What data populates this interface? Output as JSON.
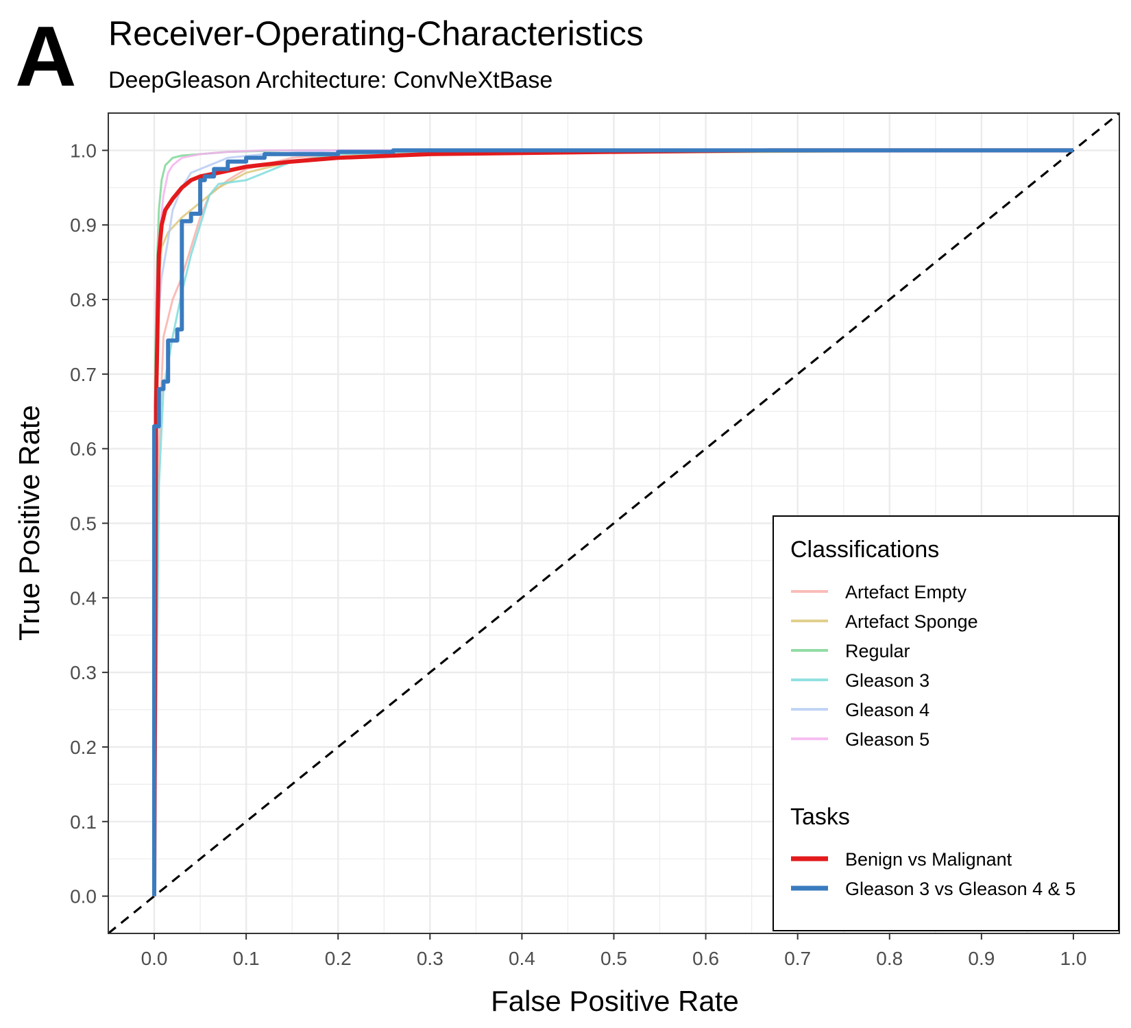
{
  "chart_data": {
    "type": "line",
    "panel_label": "A",
    "title": "Receiver-Operating-Characteristics",
    "subtitle": "DeepGleason  Architecture: ConvNeXtBase",
    "xlabel": "False Positive Rate",
    "ylabel": "True Positive Rate",
    "xlim": [
      -0.05,
      1.05
    ],
    "ylim": [
      -0.05,
      1.05
    ],
    "x_ticks": [
      "0.0",
      "0.1",
      "0.2",
      "0.3",
      "0.4",
      "0.5",
      "0.6",
      "0.7",
      "0.8",
      "0.9",
      "1.0"
    ],
    "y_ticks": [
      "0.0",
      "0.1",
      "0.2",
      "0.3",
      "0.4",
      "0.5",
      "0.6",
      "0.7",
      "0.8",
      "0.9",
      "1.0"
    ],
    "grid": true,
    "legend_position": "bottom-right",
    "reference_line": {
      "style": "dashed",
      "color": "#000000",
      "from": [
        -0.05,
        -0.05
      ],
      "to": [
        1.05,
        1.05
      ]
    },
    "legends": [
      {
        "title": "Classifications",
        "series": [
          {
            "name": "Artefact Empty",
            "color": "#f8b1ab",
            "group": "Classifications",
            "x": [
              0,
              0.005,
              0.01,
              0.02,
              0.03,
              0.04,
              0.05,
              0.06,
              0.08,
              0.1,
              0.15,
              0.2,
              0.3,
              1.0
            ],
            "y": [
              0,
              0.6,
              0.75,
              0.8,
              0.83,
              0.87,
              0.91,
              0.94,
              0.96,
              0.975,
              0.99,
              0.995,
              1.0,
              1.0
            ]
          },
          {
            "name": "Artefact Sponge",
            "color": "#dcc87a",
            "group": "Classifications",
            "x": [
              0,
              0.003,
              0.008,
              0.015,
              0.03,
              0.05,
              0.07,
              0.1,
              0.15,
              0.2,
              1.0
            ],
            "y": [
              0,
              0.8,
              0.87,
              0.89,
              0.91,
              0.93,
              0.95,
              0.97,
              0.985,
              0.995,
              1.0
            ]
          },
          {
            "name": "Regular",
            "color": "#7fd796",
            "group": "Classifications",
            "x": [
              0,
              0.001,
              0.003,
              0.005,
              0.008,
              0.012,
              0.02,
              0.03,
              0.05,
              0.08,
              0.15,
              1.0
            ],
            "y": [
              0,
              0.72,
              0.85,
              0.92,
              0.96,
              0.98,
              0.99,
              0.993,
              0.995,
              0.998,
              1.0,
              1.0
            ]
          },
          {
            "name": "Gleason 3",
            "color": "#7fdcdc",
            "group": "Classifications",
            "x": [
              0,
              0.005,
              0.01,
              0.02,
              0.03,
              0.04,
              0.05,
              0.06,
              0.07,
              0.1,
              0.12,
              0.15,
              0.2,
              0.3,
              0.65,
              1.0
            ],
            "y": [
              0,
              0.55,
              0.68,
              0.75,
              0.81,
              0.86,
              0.9,
              0.94,
              0.955,
              0.96,
              0.97,
              0.985,
              0.995,
              0.998,
              1.0,
              1.0
            ]
          },
          {
            "name": "Gleason 4",
            "color": "#b7cdf4",
            "group": "Classifications",
            "x": [
              0,
              0.003,
              0.008,
              0.015,
              0.02,
              0.03,
              0.04,
              0.06,
              0.08,
              0.12,
              0.2,
              1.0
            ],
            "y": [
              0,
              0.75,
              0.83,
              0.88,
              0.92,
              0.95,
              0.97,
              0.98,
              0.99,
              0.995,
              1.0,
              1.0
            ]
          },
          {
            "name": "Gleason 5",
            "color": "#f5b3ef",
            "group": "Classifications",
            "x": [
              0,
              0.002,
              0.005,
              0.01,
              0.015,
              0.02,
              0.03,
              0.05,
              0.08,
              0.12,
              1.0
            ],
            "y": [
              0,
              0.8,
              0.88,
              0.94,
              0.97,
              0.98,
              0.99,
              0.995,
              0.998,
              1.0,
              1.0
            ]
          }
        ]
      },
      {
        "title": "Tasks",
        "series": [
          {
            "name": "Benign vs Malignant",
            "color": "#e31a1c",
            "group": "Tasks",
            "x": [
              0,
              0.002,
              0.005,
              0.008,
              0.012,
              0.02,
              0.03,
              0.04,
              0.05,
              0.07,
              0.1,
              0.15,
              0.2,
              0.3,
              0.5,
              0.67,
              1.0
            ],
            "y": [
              0,
              0.66,
              0.86,
              0.9,
              0.92,
              0.935,
              0.95,
              0.96,
              0.965,
              0.97,
              0.978,
              0.985,
              0.99,
              0.995,
              0.998,
              1.0,
              1.0
            ]
          },
          {
            "name": "Gleason 3 vs Gleason 4 & 5",
            "color": "#3a7bbf",
            "group": "Tasks",
            "steps": true,
            "x": [
              0,
              0,
              0.005,
              0.01,
              0.015,
              0.025,
              0.03,
              0.04,
              0.045,
              0.05,
              0.055,
              0.065,
              0.08,
              0.1,
              0.12,
              0.2,
              0.26,
              1.0
            ],
            "y": [
              0,
              0.63,
              0.68,
              0.69,
              0.745,
              0.76,
              0.905,
              0.915,
              0.915,
              0.96,
              0.965,
              0.975,
              0.985,
              0.99,
              0.995,
              0.998,
              1.0,
              1.0
            ]
          }
        ]
      }
    ]
  }
}
